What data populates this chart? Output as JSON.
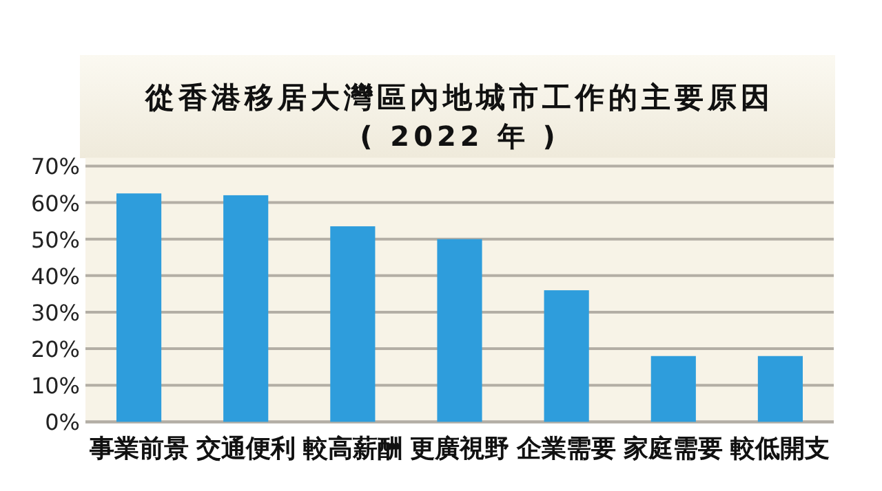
{
  "chart_data": {
    "type": "bar",
    "title": "從香港移居大灣區內地城市工作的主要原因",
    "subtitle": "( 2022 年 )",
    "categories": [
      "事業前景",
      "交通便利",
      "較高薪酬",
      "更廣視野",
      "企業需要",
      "家庭需要",
      "較低開支"
    ],
    "values": [
      62.5,
      62,
      53.5,
      50,
      36,
      18,
      18
    ],
    "color": "#2e9ddc",
    "ylim": [
      0,
      70
    ],
    "yticks": [
      {
        "value": 0,
        "label": "0%"
      },
      {
        "value": 10,
        "label": "10%"
      },
      {
        "value": 20,
        "label": "20%"
      },
      {
        "value": 30,
        "label": "30%"
      },
      {
        "value": 40,
        "label": "40%"
      },
      {
        "value": 50,
        "label": "50%"
      },
      {
        "value": 60,
        "label": "60%"
      },
      {
        "value": 70,
        "label": "70%"
      }
    ],
    "grid": "y"
  }
}
